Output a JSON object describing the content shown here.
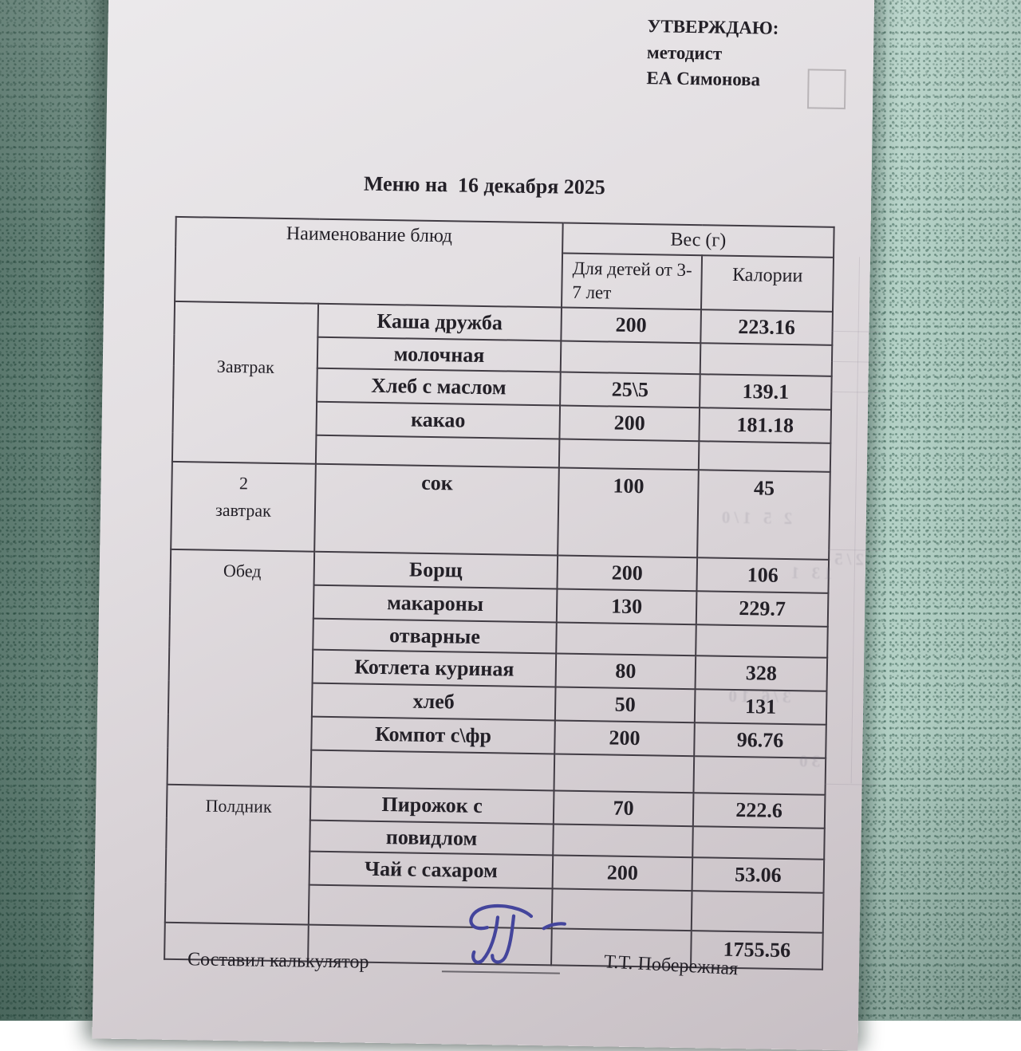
{
  "approval": {
    "lines": [
      "УТВЕРЖДАЮ:",
      "методист",
      "ЕА Симонова"
    ]
  },
  "title": "Меню на  16 декабря 2025",
  "table": {
    "header": {
      "col_dishes": "Наименование блюд",
      "col_weight_group": "Вес (г)",
      "col_weight_sub": "Для детей от 3-7 лет",
      "col_calories": "Калории"
    },
    "sections": [
      {
        "meal": "Завтрак",
        "valign": "middle",
        "rows": [
          {
            "kind": "dish",
            "dish": "Каша дружба",
            "weight": "200",
            "calories": "223.16"
          },
          {
            "kind": "cont",
            "dish": "молочная",
            "weight": "",
            "calories": ""
          },
          {
            "kind": "dish",
            "dish": "Хлеб с маслом",
            "weight": "25\\5",
            "calories": "139.1"
          },
          {
            "kind": "dish",
            "dish": "какао",
            "weight": "200",
            "calories": "181.18"
          },
          {
            "kind": "spacer",
            "dish": "",
            "weight": "",
            "calories": ""
          }
        ]
      },
      {
        "meal": "2\nзавтрак",
        "valign": "top",
        "rows": [
          {
            "kind": "tall",
            "dish": "сок",
            "weight": "100",
            "calories": "45"
          }
        ]
      },
      {
        "meal": "Обед",
        "valign": "top",
        "rows": [
          {
            "kind": "dish",
            "dish": "Борщ",
            "weight": "200",
            "calories": "106"
          },
          {
            "kind": "dish",
            "dish": "макароны",
            "weight": "130",
            "calories": "229.7"
          },
          {
            "kind": "cont",
            "dish": "отварные",
            "weight": "",
            "calories": ""
          },
          {
            "kind": "dish",
            "dish": "Котлета куриная",
            "weight": "80",
            "calories": "328"
          },
          {
            "kind": "dish",
            "dish": "хлеб",
            "weight": "50",
            "calories": "131"
          },
          {
            "kind": "dish",
            "dish": "Компот с\\фр",
            "weight": "200",
            "calories": "96.76"
          },
          {
            "kind": "spacer-lg",
            "dish": "",
            "weight": "",
            "calories": ""
          }
        ]
      },
      {
        "meal": "Полдник",
        "valign": "top",
        "rows": [
          {
            "kind": "dish",
            "dish": "Пирожок с",
            "weight": "70",
            "calories": "222.6"
          },
          {
            "kind": "cont",
            "dish": "повидлом",
            "weight": "",
            "calories": ""
          },
          {
            "kind": "dish",
            "dish": "Чай с сахаром",
            "weight": "200",
            "calories": "53.06"
          },
          {
            "kind": "spacer-xl",
            "dish": "",
            "weight": "",
            "calories": ""
          }
        ]
      }
    ],
    "total_calories": "1755.56"
  },
  "footer": {
    "prepared_by_label": "Составил калькулятор",
    "signed_name": "Т.Т. Побережная"
  },
  "bleed_through": {
    "fragments": [
      "2 5   1/0",
      "13 1",
      "2/5",
      "3/6  10",
      "30"
    ]
  }
}
